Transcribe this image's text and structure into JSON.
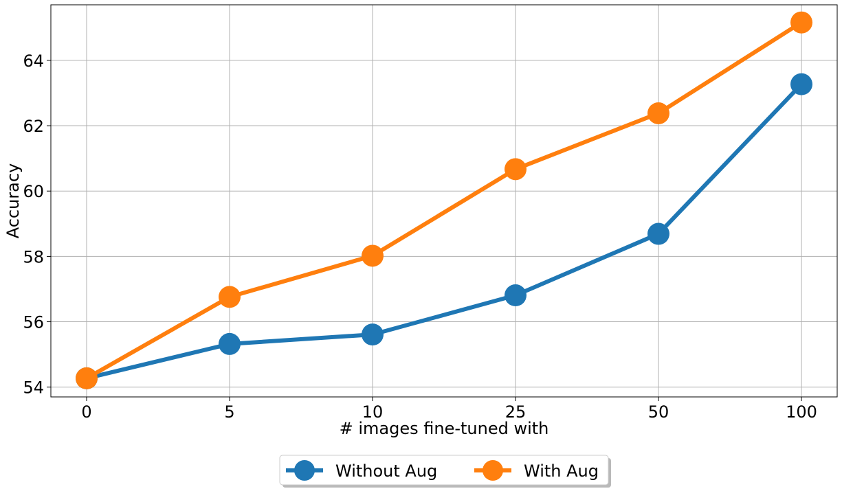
{
  "chart_data": {
    "type": "line",
    "title": "",
    "xlabel": "# images fine-tuned with",
    "ylabel": "Accuracy",
    "categories": [
      "0",
      "5",
      "10",
      "25",
      "50",
      "100"
    ],
    "yticks": [
      54,
      56,
      58,
      60,
      62,
      64
    ],
    "ylim": [
      53.7,
      65.7
    ],
    "grid": true,
    "legend_position": "bottom-center",
    "series": [
      {
        "name": "Without Aug",
        "color": "#1f77b4",
        "values": [
          54.27,
          55.32,
          55.61,
          56.81,
          58.69,
          63.27
        ]
      },
      {
        "name": "With Aug",
        "color": "#ff7f0e",
        "values": [
          54.27,
          56.76,
          58.02,
          60.67,
          62.38,
          65.16
        ]
      }
    ]
  }
}
